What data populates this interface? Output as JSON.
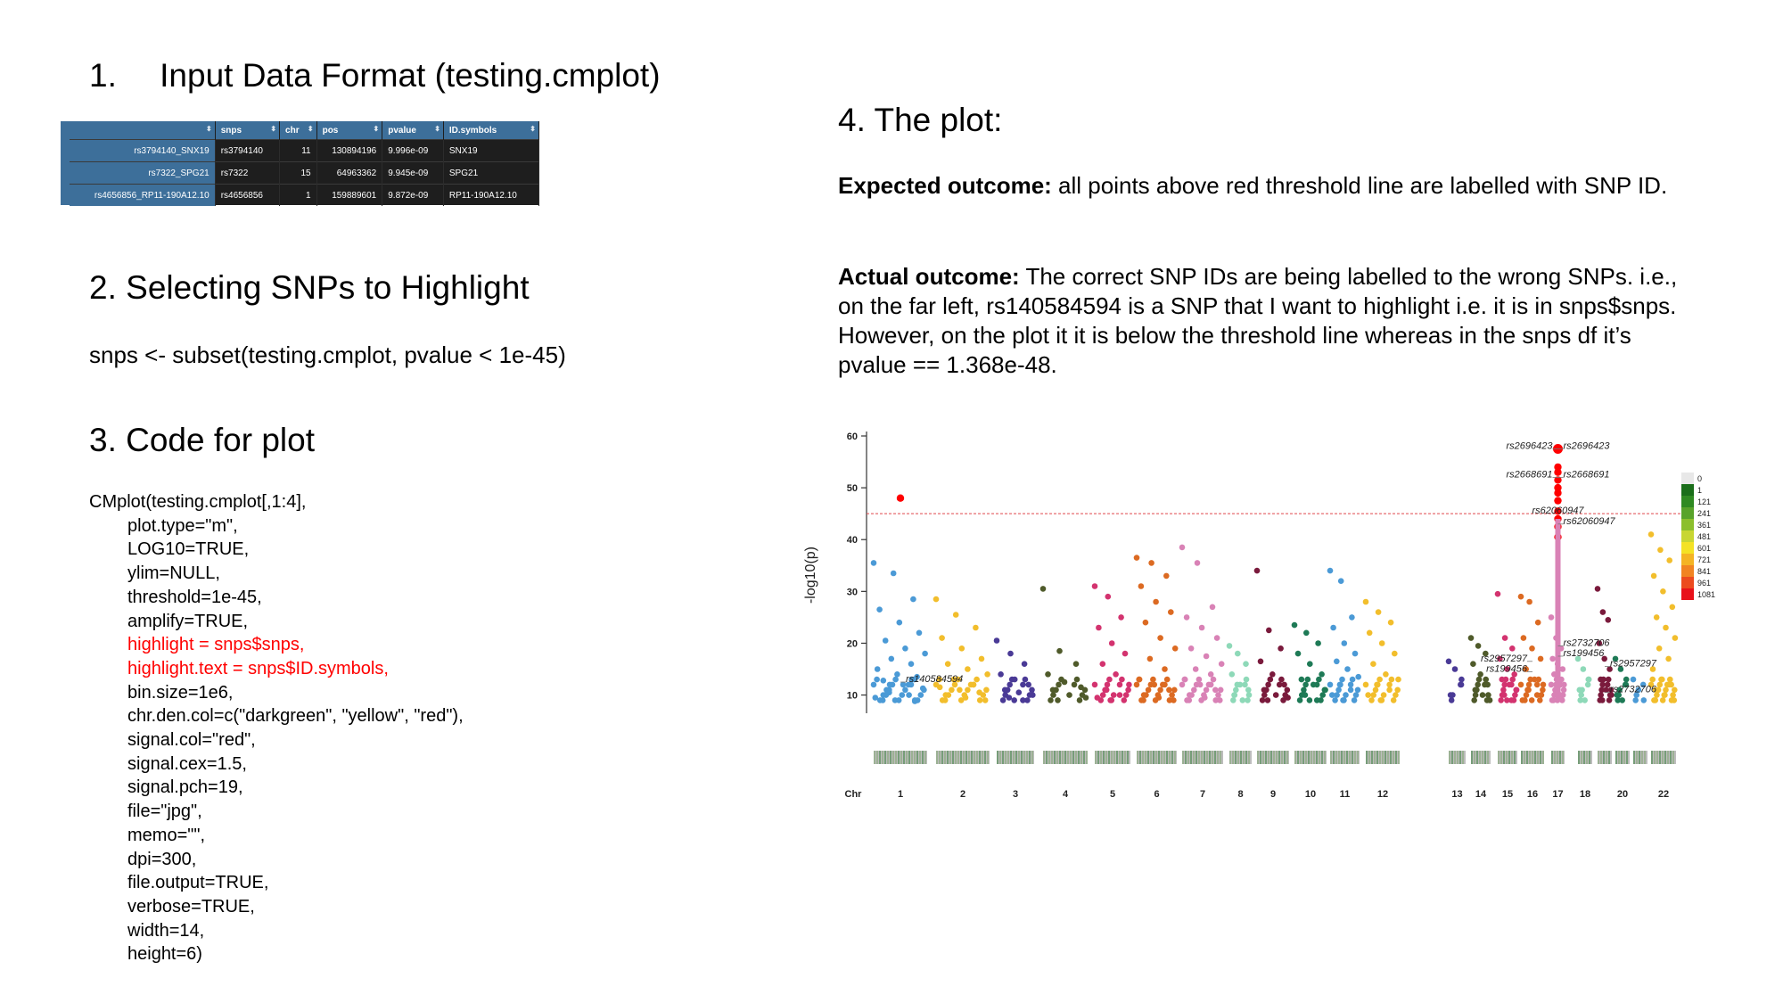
{
  "section1": {
    "number": "1.",
    "title": "Input Data Format (testing.cmplot)"
  },
  "table": {
    "headers": [
      "",
      "snps",
      "chr",
      "pos",
      "pvalue",
      "ID.symbols"
    ],
    "sort_glyph": "⬍",
    "rows": [
      [
        "rs3794140_SNX19",
        "rs3794140",
        "11",
        "130894196",
        "9.996e-09",
        "SNX19"
      ],
      [
        "rs7322_SPG21",
        "rs7322",
        "15",
        "64963362",
        "9.945e-09",
        "SPG21"
      ],
      [
        "rs4656856_RP11-190A12.10",
        "rs4656856",
        "1",
        "159889601",
        "9.872e-09",
        "RP11-190A12.10"
      ]
    ]
  },
  "section2": {
    "title": "2. Selecting SNPs to Highlight",
    "code": "snps <- subset(testing.cmplot, pvalue < 1e-45)"
  },
  "section3": {
    "title": "3. Code for plot",
    "code_lines": [
      {
        "text": "CMplot(testing.cmplot[,1:4],",
        "indent": false,
        "highlight": false
      },
      {
        "text": "plot.type=\"m\",",
        "indent": true,
        "highlight": false
      },
      {
        "text": "LOG10=TRUE,",
        "indent": true,
        "highlight": false
      },
      {
        "text": "ylim=NULL,",
        "indent": true,
        "highlight": false
      },
      {
        "text": "threshold=1e-45,",
        "indent": true,
        "highlight": false
      },
      {
        "text": "amplify=TRUE,",
        "indent": true,
        "highlight": false
      },
      {
        "text": "highlight = snps$snps,",
        "indent": true,
        "highlight": true
      },
      {
        "text": "highlight.text = snps$ID.symbols,",
        "indent": true,
        "highlight": true
      },
      {
        "text": "bin.size=1e6,",
        "indent": true,
        "highlight": false
      },
      {
        "text": "chr.den.col=c(\"darkgreen\", \"yellow\", \"red\"),",
        "indent": true,
        "highlight": false
      },
      {
        "text": "signal.col=\"red\",",
        "indent": true,
        "highlight": false
      },
      {
        "text": "signal.cex=1.5,",
        "indent": true,
        "highlight": false
      },
      {
        "text": "signal.pch=19,",
        "indent": true,
        "highlight": false
      },
      {
        "text": "file=\"jpg\",",
        "indent": true,
        "highlight": false
      },
      {
        "text": "memo=\"\",",
        "indent": true,
        "highlight": false
      },
      {
        "text": "dpi=300,",
        "indent": true,
        "highlight": false
      },
      {
        "text": "file.output=TRUE,",
        "indent": true,
        "highlight": false
      },
      {
        "text": "verbose=TRUE,",
        "indent": true,
        "highlight": false
      },
      {
        "text": "width=14,",
        "indent": true,
        "highlight": false
      },
      {
        "text": "height=6)",
        "indent": true,
        "highlight": false
      }
    ]
  },
  "section4": {
    "title": "4. The plot:",
    "expected_label": "Expected outcome:",
    "expected_text": " all points above red threshold line are labelled with SNP ID.",
    "actual_label": "Actual outcome:",
    "actual_lines": [
      " The correct SNP IDs are being labelled to the wrong SNPs. i.e.,",
      "on the far left, rs140584594 is a SNP that I want to highlight i.e. it is in snps$snps.",
      "However, on the plot it it is below the threshold line whereas in the snps df it’s",
      "pvalue == 1.368e-48."
    ]
  },
  "colors": {
    "threshold": "#e0474c",
    "signal": "#ff0000",
    "highlight_text": "#ff0000",
    "table_header": "#3d6f9a",
    "table_bg": "#1e1e1e",
    "chr_palette": [
      "#4b9ad6",
      "#f2be2c",
      "#4a3a96",
      "#4f5a2a",
      "#d3336f",
      "#dc6a22",
      "#d982b6",
      "#8ed9b8",
      "#7a1a3c",
      "#1e7a56",
      "#4b9ad6",
      "#f2be2c",
      "#4a3a96",
      "#4f5a2a",
      "#d3336f",
      "#dc6a22",
      "#d982b6",
      "#8ed9b8",
      "#7a1a3c",
      "#1e7a56",
      "#4b9ad6",
      "#f2be2c"
    ]
  },
  "chart_data": {
    "type": "scatter",
    "title": "",
    "xlabel": "Chr",
    "ylabel": "-log10(p)",
    "ylim": [
      7,
      60
    ],
    "y_ticks": [
      10,
      20,
      30,
      40,
      50,
      60
    ],
    "threshold": 45,
    "x_tick_labels": [
      "Chr",
      "1",
      "2",
      "3",
      "4",
      "5",
      "6",
      "7",
      "8",
      "9",
      "10",
      "11",
      "12",
      "13",
      "14",
      "15",
      "16",
      "17",
      "18",
      "20",
      "22"
    ],
    "chromosomes": [
      {
        "chr": "1",
        "peaks": [
          35.5,
          33.5,
          28.5,
          26.5,
          24,
          22,
          20.5,
          19,
          18,
          17,
          16,
          15,
          14,
          13.5,
          12.8,
          12,
          11.3,
          10.5,
          10,
          9.5,
          9,
          8.8
        ]
      },
      {
        "chr": "2",
        "peaks": [
          28.5,
          25.5,
          23,
          21,
          19,
          17,
          16,
          15,
          14,
          13,
          12,
          11.5,
          11,
          10.5,
          10,
          9.5,
          9
        ]
      },
      {
        "chr": "3",
        "peaks": [
          20.5,
          18,
          16,
          14,
          13,
          12,
          11,
          10.5,
          10,
          9.5,
          9
        ]
      },
      {
        "chr": "4",
        "peaks": [
          30.5,
          18.5,
          16,
          14,
          12.5,
          11.5,
          11,
          10,
          9.5,
          9
        ]
      },
      {
        "chr": "5",
        "peaks": [
          31,
          29,
          25,
          23,
          20,
          18,
          16,
          14,
          12,
          11,
          10,
          9.5,
          9
        ]
      },
      {
        "chr": "6",
        "peaks": [
          36.5,
          35.5,
          33,
          31,
          28,
          26,
          24,
          21,
          19,
          17,
          15,
          13,
          12,
          11,
          10,
          9.5,
          9
        ]
      },
      {
        "chr": "7",
        "peaks": [
          38.5,
          35.5,
          27,
          25,
          23,
          21,
          19,
          17.5,
          16,
          15,
          14,
          13,
          12,
          11,
          10,
          9.5,
          9
        ]
      },
      {
        "chr": "8",
        "peaks": [
          19.5,
          18,
          16,
          14,
          12,
          11,
          10,
          9
        ]
      },
      {
        "chr": "9",
        "peaks": [
          34,
          22.5,
          19,
          16.5,
          14,
          12,
          11,
          10,
          9.5,
          9
        ]
      },
      {
        "chr": "10",
        "peaks": [
          23.5,
          22,
          20,
          18,
          16,
          14,
          13,
          12,
          11,
          10,
          9
        ]
      },
      {
        "chr": "11",
        "peaks": [
          34,
          32,
          25,
          23,
          20,
          18,
          16.5,
          15,
          13.5,
          12,
          11,
          10,
          9
        ]
      },
      {
        "chr": "12",
        "peaks": [
          28,
          26,
          24,
          22,
          20,
          18,
          16,
          14,
          13,
          12,
          11,
          10,
          9
        ]
      },
      {
        "chr": "13",
        "peaks": [
          16.5,
          15,
          12,
          10
        ]
      },
      {
        "chr": "14",
        "peaks": [
          21,
          19.5,
          18,
          16,
          14,
          12,
          11,
          10,
          9
        ]
      },
      {
        "chr": "15",
        "peaks": [
          29.5,
          21,
          19,
          17,
          15,
          14,
          13,
          12,
          11,
          10,
          9
        ]
      },
      {
        "chr": "16",
        "peaks": [
          29,
          28,
          24,
          21,
          19,
          17,
          15,
          13,
          12,
          11,
          10,
          9
        ]
      },
      {
        "chr": "17",
        "peaks": [
          25,
          21,
          19,
          17,
          16,
          15,
          14,
          13,
          12,
          11,
          10,
          9
        ]
      },
      {
        "chr": "18",
        "peaks": [
          17,
          15,
          13,
          11,
          9
        ]
      },
      {
        "chr": "19",
        "peaks": [
          30.5,
          26,
          24.5,
          20,
          17,
          15,
          13,
          11,
          10,
          9
        ]
      },
      {
        "chr": "20",
        "peaks": [
          17,
          15,
          12,
          10,
          9
        ]
      },
      {
        "chr": "21",
        "peaks": [
          13,
          11,
          9
        ]
      },
      {
        "chr": "22",
        "peaks": [
          41,
          38,
          36,
          33,
          30,
          27,
          25,
          23,
          21,
          19,
          17,
          15,
          13,
          12,
          11,
          10,
          9
        ]
      }
    ],
    "signal_points": [
      {
        "chr": "1",
        "y": 48
      },
      {
        "chr": "17",
        "y": 57.5
      },
      {
        "chr": "17",
        "y": 54
      },
      {
        "chr": "17",
        "y": 53
      },
      {
        "chr": "17",
        "y": 51.5
      },
      {
        "chr": "17",
        "y": 50
      },
      {
        "chr": "17",
        "y": 49
      },
      {
        "chr": "17",
        "y": 47.5
      },
      {
        "chr": "17",
        "y": 45.5
      },
      {
        "chr": "17",
        "y": 44
      },
      {
        "chr": "17",
        "y": 42.5
      },
      {
        "chr": "17",
        "y": 40.5
      }
    ],
    "snp_labels": [
      {
        "text": "rs2696423",
        "anchor_chr": "17",
        "y": 57.5,
        "side": "left"
      },
      {
        "text": "rs2696423",
        "anchor_chr": "17",
        "y": 57.5,
        "side": "right"
      },
      {
        "text": "rs2668691",
        "anchor_chr": "17",
        "y": 52,
        "side": "left"
      },
      {
        "text": "rs2668691",
        "anchor_chr": "17",
        "y": 52,
        "side": "right"
      },
      {
        "text": "rs62060947",
        "anchor_chr": "17",
        "y": 45,
        "side": "center"
      },
      {
        "text": "rs62060947",
        "anchor_chr": "17",
        "y": 43,
        "side": "right"
      },
      {
        "text": "rs140584594",
        "anchor_chr": "1",
        "y": 12.5,
        "side": "right"
      },
      {
        "text": "rs2732706",
        "anchor_chr": "17",
        "y": 19.5,
        "side": "right"
      },
      {
        "text": "rs199456",
        "anchor_chr": "17",
        "y": 17.5,
        "side": "right"
      },
      {
        "text": "rs2957297",
        "anchor_chr": "16",
        "y": 16.5,
        "side": "left"
      },
      {
        "text": "rs199456",
        "anchor_chr": "16",
        "y": 14.5,
        "side": "left"
      },
      {
        "text": "rs2957297",
        "anchor_chr": "19",
        "y": 15.5,
        "side": "right"
      },
      {
        "text": "rs2732706",
        "anchor_chr": "19",
        "y": 10.5,
        "side": "right"
      }
    ],
    "legend": {
      "labels": [
        "0",
        "1",
        "121",
        "241",
        "361",
        "481",
        "601",
        "721",
        "841",
        "961",
        "1081"
      ],
      "colors": [
        "#e8e8e8",
        "#1a6e1a",
        "#2f8a22",
        "#58a32a",
        "#8bbf2d",
        "#c8d633",
        "#f4e225",
        "#f4b424",
        "#f18422",
        "#ec4b1f",
        "#e8121a"
      ]
    }
  }
}
